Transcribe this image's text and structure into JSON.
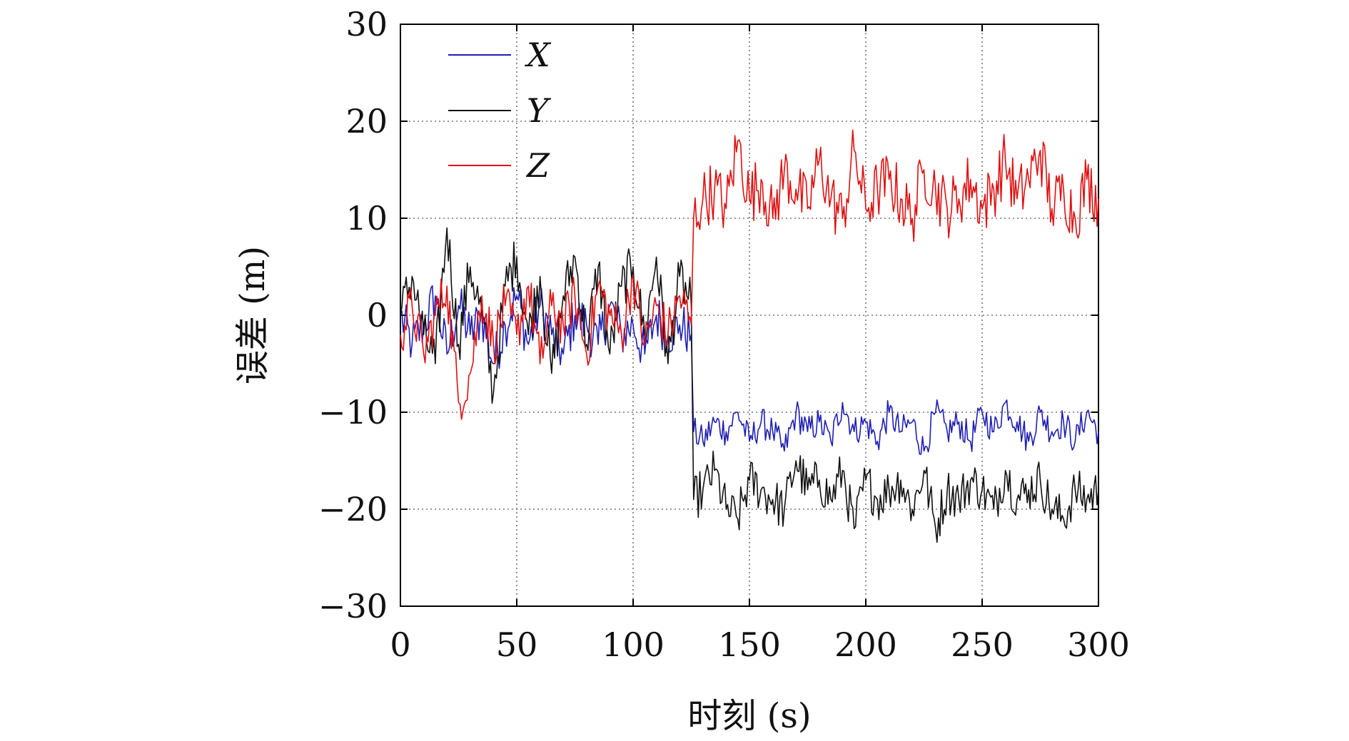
{
  "chart_data": {
    "type": "line",
    "title": "",
    "xlabel": "时刻 (s)",
    "ylabel": "误差 (m)",
    "xlim": [
      0,
      300
    ],
    "ylim": [
      -30,
      30
    ],
    "xticks": [
      0,
      50,
      100,
      150,
      200,
      250,
      300
    ],
    "yticks": [
      -30,
      -20,
      -10,
      0,
      10,
      20,
      30
    ],
    "xtick_labels": [
      "0",
      "50",
      "100",
      "150",
      "200",
      "250",
      "300"
    ],
    "ytick_labels": [
      "−30",
      "−20",
      "−10",
      "0",
      "10",
      "20",
      "30"
    ],
    "grid": true,
    "legend_position": "top-left",
    "step_time": 126,
    "series": [
      {
        "name": "X",
        "color": "#1f1fb4",
        "x": [
          0,
          5,
          10,
          15,
          20,
          25,
          30,
          35,
          40,
          45,
          50,
          55,
          60,
          65,
          70,
          75,
          80,
          85,
          90,
          95,
          100,
          105,
          110,
          115,
          120,
          125,
          126,
          130,
          135,
          140,
          145,
          150,
          155,
          160,
          165,
          170,
          175,
          180,
          185,
          190,
          195,
          200,
          205,
          210,
          215,
          220,
          225,
          230,
          235,
          240,
          245,
          250,
          255,
          260,
          265,
          270,
          275,
          280,
          285,
          290,
          295,
          300
        ],
        "values": [
          0,
          -3,
          -1,
          2,
          -4,
          1,
          -2,
          0,
          -5,
          -1,
          2,
          -3,
          1,
          -2,
          -4,
          0,
          -1,
          -3,
          1,
          -2,
          -1,
          -4,
          0,
          -2,
          -1,
          -2,
          -12,
          -13,
          -11,
          -12,
          -10,
          -13,
          -11,
          -12,
          -14,
          -10,
          -12,
          -11,
          -13,
          -9,
          -12,
          -11,
          -13,
          -10,
          -12,
          -11,
          -14,
          -10,
          -12,
          -11,
          -13,
          -10,
          -12,
          -9,
          -11,
          -13,
          -10,
          -12,
          -11,
          -13,
          -10,
          -12
        ]
      },
      {
        "name": "Y",
        "color": "#111111",
        "x": [
          0,
          5,
          10,
          15,
          20,
          25,
          30,
          35,
          40,
          45,
          50,
          55,
          60,
          65,
          70,
          75,
          80,
          85,
          90,
          95,
          100,
          105,
          110,
          115,
          120,
          125,
          126,
          130,
          135,
          140,
          145,
          150,
          155,
          160,
          165,
          170,
          175,
          180,
          185,
          190,
          195,
          200,
          205,
          210,
          215,
          220,
          225,
          230,
          235,
          240,
          245,
          250,
          255,
          260,
          265,
          270,
          275,
          280,
          285,
          290,
          295,
          300
        ],
        "values": [
          0,
          4,
          -2,
          -5,
          9,
          -3,
          5,
          0,
          -8,
          3,
          6,
          -2,
          4,
          -6,
          2,
          6,
          -3,
          5,
          -4,
          3,
          5,
          -2,
          6,
          -5,
          4,
          1,
          -19,
          -18,
          -16,
          -20,
          -21,
          -17,
          -18,
          -19,
          -20,
          -15,
          -18,
          -17,
          -19,
          -16,
          -22,
          -17,
          -19,
          -18,
          -17,
          -20,
          -16,
          -22,
          -18,
          -19,
          -17,
          -18,
          -20,
          -16,
          -19,
          -18,
          -17,
          -20,
          -21,
          -18,
          -19,
          -18
        ]
      },
      {
        "name": "Z",
        "color": "#e01010",
        "x": [
          0,
          5,
          10,
          15,
          20,
          25,
          30,
          35,
          40,
          45,
          50,
          55,
          60,
          65,
          70,
          75,
          80,
          85,
          90,
          95,
          100,
          105,
          110,
          115,
          120,
          125,
          126,
          130,
          135,
          140,
          145,
          150,
          155,
          160,
          165,
          170,
          175,
          180,
          185,
          190,
          195,
          200,
          205,
          210,
          215,
          220,
          225,
          230,
          235,
          240,
          245,
          250,
          255,
          260,
          265,
          270,
          275,
          280,
          285,
          290,
          295,
          300
        ],
        "values": [
          -2,
          1,
          -4,
          0,
          3,
          -9,
          -6,
          2,
          -3,
          1,
          -2,
          3,
          -5,
          1,
          -1,
          2,
          -4,
          3,
          0,
          -2,
          4,
          -3,
          1,
          -2,
          2,
          -1,
          10,
          12,
          13,
          11,
          18,
          12,
          14,
          10,
          15,
          13,
          11,
          16,
          12,
          10,
          17,
          11,
          13,
          14,
          12,
          10,
          15,
          13,
          11,
          12,
          14,
          11,
          13,
          16,
          12,
          14,
          17,
          11,
          13,
          10,
          14,
          12
        ]
      }
    ]
  }
}
